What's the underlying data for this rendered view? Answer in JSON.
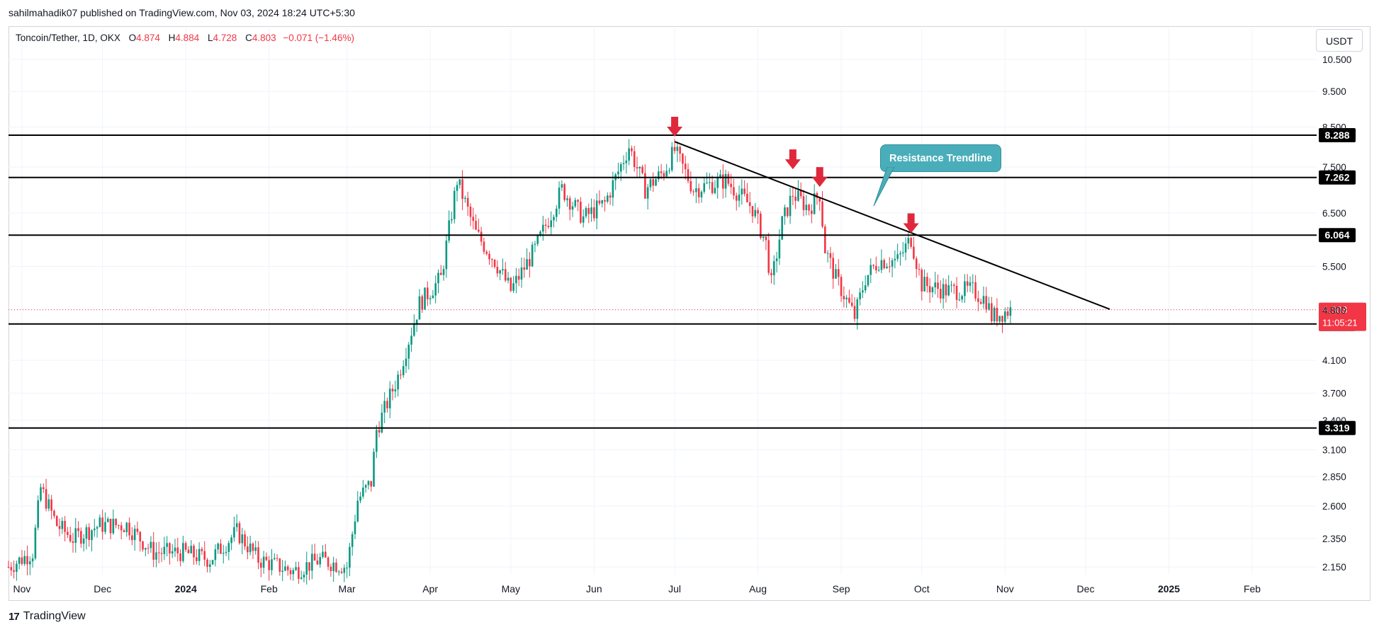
{
  "publisher_line": "sahilmahadik07 published on TradingView.com, Nov 03, 2024 18:24 UTC+5:30",
  "legend": {
    "symbol": "Toncoin/Tether, 1D, OKX",
    "o_label": "O",
    "o_value": "4.874",
    "h_label": "H",
    "h_value": "4.884",
    "l_label": "L",
    "l_value": "4.728",
    "c_label": "C",
    "c_value": "4.803",
    "change": "−0.071 (−1.46%)"
  },
  "currency_button": "USDT",
  "annotation": "Resistance Trendline",
  "footer_brand": "TradingView",
  "colors": {
    "up": "#089981",
    "down": "#f23645",
    "level_line": "#000000",
    "callout": "#4aaeba",
    "arrow": "#e0283c",
    "grid": "#f0f3fa"
  },
  "chart_data": {
    "type": "candlestick",
    "price_axis": {
      "scale": "log",
      "ticks": [
        "10.500",
        "9.500",
        "8.500",
        "7.500",
        "6.500",
        "5.500",
        "4.800",
        "4.100",
        "3.700",
        "3.400",
        "3.100",
        "2.850",
        "2.600",
        "2.350",
        "2.150"
      ]
    },
    "time_axis": {
      "ticks": [
        "Nov",
        "Dec",
        "2024",
        "Feb",
        "Mar",
        "Apr",
        "May",
        "Jun",
        "Jul",
        "Aug",
        "Sep",
        "Oct",
        "Nov",
        "Dec",
        "2025",
        "Feb"
      ],
      "bold": [
        "2024",
        "2025"
      ],
      "range": [
        "2023-10-27",
        "2025-02-25"
      ]
    },
    "horizontal_levels": [
      "8.288",
      "7.262",
      "6.064",
      "4.594",
      "3.319"
    ],
    "last_price": {
      "value": "4.803",
      "countdown": "11:05:21"
    },
    "trendline": {
      "from": [
        "2024-07-01",
        8.12
      ],
      "to": [
        "2024-12-10",
        4.81
      ],
      "label": "Resistance Trendline"
    },
    "rejection_arrows": [
      {
        "date": "2024-07-01",
        "price": 8.25
      },
      {
        "date": "2024-08-14",
        "price": 7.45
      },
      {
        "date": "2024-08-24",
        "price": 7.05
      },
      {
        "date": "2024-09-27",
        "price": 6.1
      }
    ],
    "price_path": [
      [
        "2023-10-27",
        2.15
      ],
      [
        "2023-11-05",
        2.25
      ],
      [
        "2023-11-08",
        2.75
      ],
      [
        "2023-11-14",
        2.45
      ],
      [
        "2023-11-20",
        2.35
      ],
      [
        "2023-11-30",
        2.45
      ],
      [
        "2023-12-10",
        2.45
      ],
      [
        "2023-12-20",
        2.25
      ],
      [
        "2023-12-31",
        2.25
      ],
      [
        "2024-01-10",
        2.2
      ],
      [
        "2024-01-20",
        2.4
      ],
      [
        "2024-01-28",
        2.2
      ],
      [
        "2024-02-10",
        2.12
      ],
      [
        "2024-02-20",
        2.2
      ],
      [
        "2024-03-01",
        2.15
      ],
      [
        "2024-03-05",
        2.65
      ],
      [
        "2024-03-10",
        2.8
      ],
      [
        "2024-03-12",
        3.3
      ],
      [
        "2024-03-20",
        3.9
      ],
      [
        "2024-03-28",
        4.9
      ],
      [
        "2024-04-05",
        5.3
      ],
      [
        "2024-04-11",
        7.2
      ],
      [
        "2024-04-18",
        6.1
      ],
      [
        "2024-04-25",
        5.6
      ],
      [
        "2024-05-01",
        5.1
      ],
      [
        "2024-05-10",
        5.8
      ],
      [
        "2024-05-20",
        7.0
      ],
      [
        "2024-05-28",
        6.4
      ],
      [
        "2024-06-05",
        6.7
      ],
      [
        "2024-06-14",
        8.0
      ],
      [
        "2024-06-20",
        7.0
      ],
      [
        "2024-06-27",
        7.4
      ],
      [
        "2024-07-01",
        7.9
      ],
      [
        "2024-07-08",
        7.0
      ],
      [
        "2024-07-20",
        7.2
      ],
      [
        "2024-07-30",
        6.6
      ],
      [
        "2024-08-04",
        5.9
      ],
      [
        "2024-08-06",
        5.2
      ],
      [
        "2024-08-10",
        6.3
      ],
      [
        "2024-08-14",
        6.9
      ],
      [
        "2024-08-20",
        6.6
      ],
      [
        "2024-08-24",
        6.9
      ],
      [
        "2024-08-26",
        5.8
      ],
      [
        "2024-08-30",
        5.3
      ],
      [
        "2024-09-06",
        4.7
      ],
      [
        "2024-09-10",
        5.3
      ],
      [
        "2024-09-15",
        5.6
      ],
      [
        "2024-09-22",
        5.6
      ],
      [
        "2024-09-27",
        6.0
      ],
      [
        "2024-10-01",
        5.2
      ],
      [
        "2024-10-10",
        5.1
      ],
      [
        "2024-10-20",
        5.1
      ],
      [
        "2024-10-25",
        4.95
      ],
      [
        "2024-10-27",
        4.7
      ],
      [
        "2024-11-03",
        4.8
      ]
    ]
  }
}
